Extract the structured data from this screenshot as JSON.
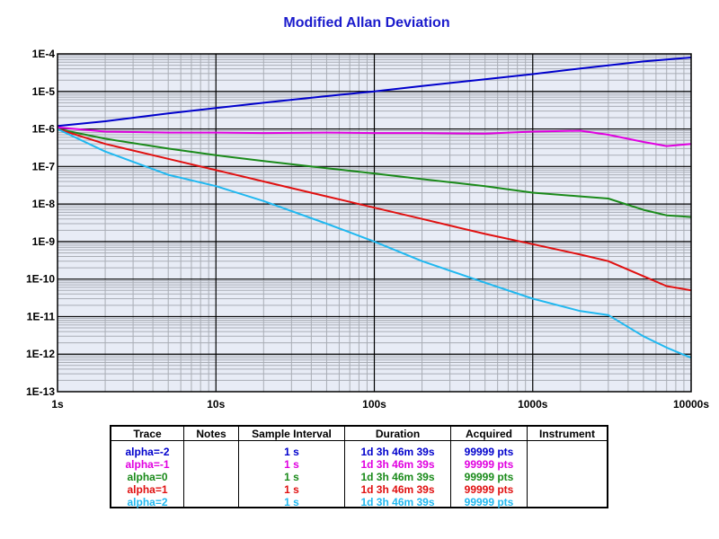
{
  "chart_data": {
    "type": "line",
    "title": "Modified Allan Deviation",
    "xlabel": "",
    "ylabel": "",
    "x_scale": "log",
    "y_scale": "log",
    "xlim": [
      1,
      10000
    ],
    "ylim": [
      1e-13,
      0.0001
    ],
    "x_tick_labels": [
      "1s",
      "10s",
      "100s",
      "1000s",
      "10000s"
    ],
    "y_tick_labels": [
      "1E-4",
      "1E-5",
      "1E-6",
      "1E-7",
      "1E-8",
      "1E-9",
      "1E-10",
      "1E-11",
      "1E-12",
      "1E-13"
    ],
    "grid": true,
    "background": "#e8ecf6",
    "series": [
      {
        "name": "alpha=-2",
        "color": "#0000cc",
        "x": [
          1,
          2,
          5,
          10,
          20,
          50,
          100,
          200,
          500,
          1000,
          2000,
          5000,
          10000
        ],
        "y": [
          1.2e-06,
          1.6e-06,
          2.6e-06,
          3.6e-06,
          5e-06,
          7.5e-06,
          1e-05,
          1.4e-05,
          2.1e-05,
          2.9e-05,
          4.1e-05,
          6.3e-05,
          8e-05
        ]
      },
      {
        "name": "alpha=-1",
        "color": "#e000e0",
        "x": [
          1,
          2,
          5,
          10,
          20,
          50,
          100,
          200,
          500,
          1000,
          2000,
          3000,
          5000,
          7000,
          10000
        ],
        "y": [
          1.1e-06,
          8.5e-07,
          8e-07,
          8e-07,
          7.8e-07,
          8e-07,
          7.8e-07,
          7.8e-07,
          7.5e-07,
          8.5e-07,
          9e-07,
          7e-07,
          4.5e-07,
          3.5e-07,
          4e-07
        ]
      },
      {
        "name": "alpha=0",
        "color": "#1a8a1a",
        "x": [
          1,
          2,
          5,
          10,
          20,
          50,
          100,
          200,
          500,
          1000,
          2000,
          3000,
          5000,
          7000,
          10000
        ],
        "y": [
          1e-06,
          5.5e-07,
          3e-07,
          2e-07,
          1.4e-07,
          9e-08,
          6.5e-08,
          4.6e-08,
          3e-08,
          2e-08,
          1.6e-08,
          1.4e-08,
          7e-09,
          5e-09,
          4.5e-09
        ]
      },
      {
        "name": "alpha=1",
        "color": "#e01010",
        "x": [
          1,
          2,
          5,
          10,
          20,
          50,
          100,
          200,
          500,
          1000,
          2000,
          3000,
          5000,
          7000,
          10000
        ],
        "y": [
          1e-06,
          4e-07,
          1.6e-07,
          8e-08,
          4e-08,
          1.6e-08,
          8e-09,
          4e-09,
          1.6e-09,
          8.5e-10,
          4.5e-10,
          3e-10,
          1.2e-10,
          6.5e-11,
          5e-11
        ]
      },
      {
        "name": "alpha=2",
        "color": "#20b8f0",
        "x": [
          1,
          2,
          5,
          10,
          20,
          50,
          100,
          200,
          500,
          1000,
          2000,
          3000,
          5000,
          7000,
          10000
        ],
        "y": [
          1e-06,
          2.5e-07,
          6e-08,
          3e-08,
          1.2e-08,
          3e-09,
          1e-09,
          3e-10,
          8e-11,
          3e-11,
          1.4e-11,
          1.1e-11,
          3e-12,
          1.5e-12,
          8e-13
        ]
      }
    ]
  },
  "legend_table": {
    "headers": [
      "Trace",
      "Notes",
      "Sample Interval",
      "Duration",
      "Acquired",
      "Instrument"
    ],
    "rows": [
      {
        "trace": "alpha=-2",
        "notes": "",
        "interval": "1 s",
        "duration": "1d 3h 46m 39s",
        "acquired": "99999 pts",
        "instrument": "",
        "color": "#0000cc"
      },
      {
        "trace": "alpha=-1",
        "notes": "",
        "interval": "1 s",
        "duration": "1d 3h 46m 39s",
        "acquired": "99999 pts",
        "instrument": "",
        "color": "#e000e0"
      },
      {
        "trace": "alpha=0",
        "notes": "",
        "interval": "1 s",
        "duration": "1d 3h 46m 39s",
        "acquired": "99999 pts",
        "instrument": "",
        "color": "#1a8a1a"
      },
      {
        "trace": "alpha=1",
        "notes": "",
        "interval": "1 s",
        "duration": "1d 3h 46m 39s",
        "acquired": "99999 pts",
        "instrument": "",
        "color": "#e01010"
      },
      {
        "trace": "alpha=2",
        "notes": "",
        "interval": "1 s",
        "duration": "1d 3h 46m 39s",
        "acquired": "99999 pts",
        "instrument": "",
        "color": "#20b8f0"
      }
    ]
  }
}
